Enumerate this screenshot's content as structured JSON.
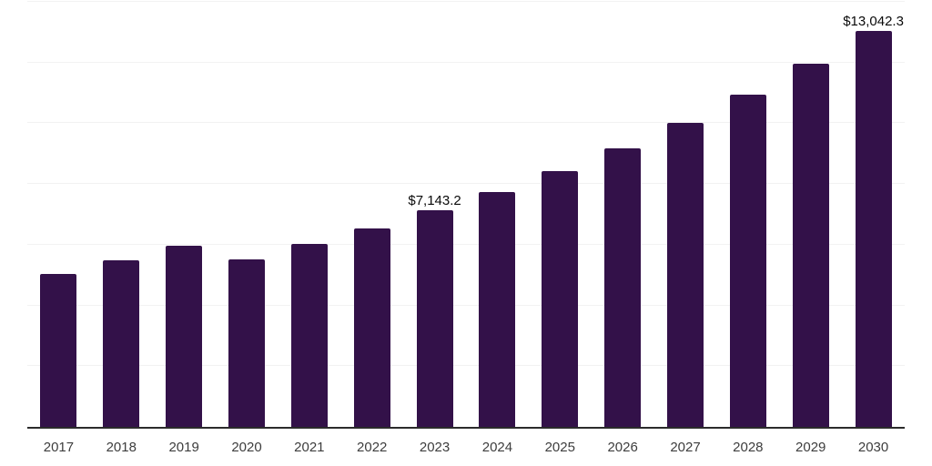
{
  "chart_data": {
    "type": "bar",
    "title": "",
    "xlabel": "",
    "ylabel": "",
    "categories": [
      "2017",
      "2018",
      "2019",
      "2020",
      "2021",
      "2022",
      "2023",
      "2024",
      "2025",
      "2026",
      "2027",
      "2028",
      "2029",
      "2030"
    ],
    "values": [
      5041,
      5475,
      5953,
      5505,
      6014,
      6522,
      7143.2,
      7749,
      8437,
      9185,
      10023,
      10950,
      11967,
      13042.3
    ],
    "data_labels": [
      null,
      null,
      null,
      null,
      null,
      null,
      "$7,143.2",
      null,
      null,
      null,
      null,
      null,
      null,
      "$13,042.3"
    ],
    "ylim": [
      0,
      14000
    ],
    "gridline_step": 2000,
    "grid": true,
    "legend": false,
    "colors": {
      "bar": "#331149",
      "axis": "#2b2b2b",
      "gridline": "#f2f2f2",
      "tick_label": "#3d3d3d",
      "data_label": "#0a0a0a",
      "background": "#ffffff"
    }
  }
}
